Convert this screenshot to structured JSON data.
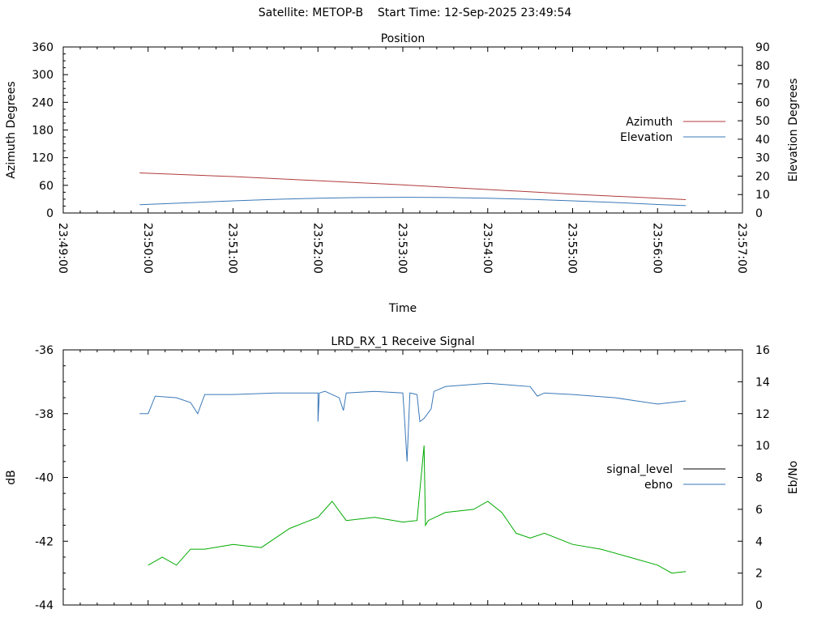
{
  "header": {
    "title": "Satellite: METOP-B    Start Time: 12-Sep-2025 23:49:54"
  },
  "chart_data": [
    {
      "type": "line",
      "title": "Position",
      "xlabel": "Time",
      "ylabel": "Azimuth Degrees",
      "y2label": "Elevation Degrees",
      "x_ticks": [
        "23:49:00",
        "23:50:00",
        "23:51:00",
        "23:52:00",
        "23:53:00",
        "23:54:00",
        "23:55:00",
        "23:56:00",
        "23:57:00"
      ],
      "xlim": [
        "23:49:00",
        "23:57:00"
      ],
      "ylim": [
        0,
        360
      ],
      "y_ticks": [
        "0",
        "60",
        "120",
        "180",
        "240",
        "300",
        "360"
      ],
      "y2lim": [
        0,
        90
      ],
      "y2_ticks": [
        "0",
        "10",
        "20",
        "30",
        "40",
        "50",
        "60",
        "70",
        "80",
        "90"
      ],
      "legend_position": "right",
      "series": [
        {
          "name": "Azimuth",
          "axis": "left",
          "color": "#b03a3a",
          "x": [
            "23:49:54",
            "23:51:00",
            "23:52:00",
            "23:53:00",
            "23:54:00",
            "23:55:00",
            "23:56:00",
            "23:56:20"
          ],
          "y": [
            87,
            79,
            70,
            61,
            51,
            41,
            32,
            29
          ]
        },
        {
          "name": "Elevation",
          "axis": "right",
          "color": "#3a78b8",
          "x": [
            "23:49:54",
            "23:50:30",
            "23:51:00",
            "23:51:30",
            "23:52:00",
            "23:52:30",
            "23:53:00",
            "23:53:30",
            "23:54:00",
            "23:54:30",
            "23:55:00",
            "23:55:30",
            "23:56:00",
            "23:56:20"
          ],
          "y": [
            4.5,
            5.6,
            6.6,
            7.4,
            8.0,
            8.4,
            8.5,
            8.4,
            8.0,
            7.4,
            6.6,
            5.7,
            4.6,
            4.0
          ]
        }
      ]
    },
    {
      "type": "line",
      "title": "LRD_RX_1 Receive Signal",
      "xlabel": "",
      "ylabel": "dB",
      "y2label": "Eb/No",
      "xlim": [
        "23:49:00",
        "23:57:00"
      ],
      "ylim": [
        -44,
        -36
      ],
      "y_ticks": [
        "-44",
        "-42",
        "-40",
        "-38",
        "-36"
      ],
      "y2lim": [
        0,
        16
      ],
      "y2_ticks": [
        "0",
        "2",
        "4",
        "6",
        "8",
        "10",
        "12",
        "14",
        "16"
      ],
      "legend_position": "right",
      "series": [
        {
          "name": "signal_level",
          "axis": "left",
          "color": "#000000",
          "x": [],
          "y": []
        },
        {
          "name": "ebno",
          "axis": "right",
          "color": "#3a78b8",
          "x": [
            "23:49:54",
            "23:50:00",
            "23:50:05",
            "23:50:20",
            "23:50:30",
            "23:50:35",
            "23:50:40",
            "23:51:00",
            "23:51:30",
            "23:52:00",
            "23:52:00",
            "23:52:01",
            "23:52:05",
            "23:52:15",
            "23:52:18",
            "23:52:20",
            "23:52:40",
            "23:53:00",
            "23:53:01",
            "23:53:03",
            "23:53:05",
            "23:53:10",
            "23:53:12",
            "23:53:15",
            "23:53:20",
            "23:53:22",
            "23:53:25",
            "23:53:30",
            "23:54:00",
            "23:54:30",
            "23:54:35",
            "23:54:40",
            "23:55:00",
            "23:55:30",
            "23:55:45",
            "23:56:00",
            "23:56:20"
          ],
          "y": [
            12.0,
            12.0,
            13.1,
            13.0,
            12.7,
            12.0,
            13.2,
            13.2,
            13.3,
            13.3,
            11.5,
            13.3,
            13.4,
            13.0,
            12.2,
            13.3,
            13.4,
            13.3,
            12.0,
            9.0,
            13.3,
            13.2,
            11.5,
            11.7,
            12.3,
            13.4,
            13.5,
            13.7,
            13.9,
            13.7,
            13.1,
            13.3,
            13.2,
            13.0,
            12.8,
            12.6,
            12.8
          ]
        },
        {
          "name": "",
          "axis": "right",
          "color": "#00aa00",
          "x": [
            "23:50:00",
            "23:50:10",
            "23:50:20",
            "23:50:30",
            "23:50:40",
            "23:51:00",
            "23:51:20",
            "23:51:40",
            "23:52:00",
            "23:52:10",
            "23:52:20",
            "23:52:40",
            "23:53:00",
            "23:53:10",
            "23:53:15",
            "23:53:16",
            "23:53:18",
            "23:53:30",
            "23:53:50",
            "23:54:00",
            "23:54:10",
            "23:54:20",
            "23:54:30",
            "23:54:40",
            "23:55:00",
            "23:55:20",
            "23:55:40",
            "23:56:00",
            "23:56:10",
            "23:56:20"
          ],
          "y": [
            2.5,
            3.0,
            2.5,
            3.5,
            3.5,
            3.8,
            3.6,
            4.8,
            5.5,
            6.5,
            5.3,
            5.5,
            5.2,
            5.3,
            10.0,
            5.0,
            5.3,
            5.8,
            6.0,
            6.5,
            5.8,
            4.5,
            4.2,
            4.5,
            3.8,
            3.5,
            3.0,
            2.5,
            2.0,
            2.1
          ]
        }
      ]
    }
  ]
}
